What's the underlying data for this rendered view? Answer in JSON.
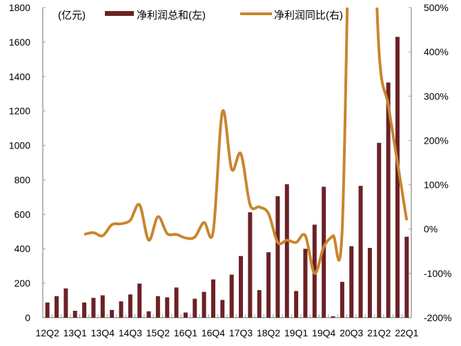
{
  "chart_data": {
    "type": "bar+line",
    "title": "",
    "unit_label": "(亿元)",
    "legend": [
      {
        "name": "净利润总和(左)",
        "type": "bar",
        "color": "#6b2226"
      },
      {
        "name": "净利润同比(右)",
        "type": "line",
        "color": "#c8862e"
      }
    ],
    "left_axis": {
      "min": 0,
      "max": 1800,
      "ticks": [
        0,
        200,
        400,
        600,
        800,
        1000,
        1200,
        1400,
        1600,
        1800
      ]
    },
    "right_axis": {
      "min": -200,
      "max": 500,
      "ticks": [
        "-200%",
        "-100%",
        "0%",
        "100%",
        "200%",
        "300%",
        "400%",
        "500%"
      ],
      "tick_values": [
        -200,
        -100,
        0,
        100,
        200,
        300,
        400,
        500
      ]
    },
    "x_tick_labels": [
      "12Q2",
      "13Q1",
      "13Q4",
      "14Q3",
      "15Q2",
      "16Q1",
      "16Q4",
      "17Q3",
      "18Q2",
      "19Q1",
      "19Q4",
      "20Q3",
      "21Q2",
      "22Q1"
    ],
    "categories": [
      "12Q2",
      "12Q3",
      "12Q4",
      "13Q1",
      "13Q2",
      "13Q3",
      "13Q4",
      "14Q1",
      "14Q2",
      "14Q3",
      "14Q4",
      "15Q1",
      "15Q2",
      "15Q3",
      "15Q4",
      "16Q1",
      "16Q2",
      "16Q3",
      "16Q4",
      "17Q1",
      "17Q2",
      "17Q3",
      "17Q4",
      "18Q1",
      "18Q2",
      "18Q3",
      "18Q4",
      "19Q1",
      "19Q2",
      "19Q3",
      "19Q4",
      "20Q1",
      "20Q2",
      "20Q3",
      "20Q4",
      "21Q1",
      "21Q2",
      "21Q3",
      "21Q4",
      "22Q1"
    ],
    "series": [
      {
        "name": "净利润总和(左)",
        "axis": "left",
        "values": [
          88,
          125,
          170,
          40,
          88,
          115,
          130,
          45,
          95,
          135,
          198,
          37,
          125,
          118,
          175,
          30,
          110,
          150,
          222,
          103,
          250,
          358,
          612,
          160,
          380,
          705,
          775,
          155,
          400,
          540,
          760,
          8,
          208,
          415,
          765,
          405,
          1015,
          1365,
          1630,
          470
        ]
      },
      {
        "name": "净利润同比(右)",
        "axis": "right",
        "values": [
          null,
          null,
          null,
          null,
          -12,
          -8,
          -15,
          10,
          12,
          20,
          55,
          -25,
          28,
          -10,
          -12,
          -20,
          -18,
          15,
          -5,
          265,
          135,
          170,
          55,
          50,
          35,
          -30,
          -25,
          -30,
          -15,
          -100,
          -40,
          -15,
          0,
          null,
          null,
          null,
          400,
          280,
          150,
          20
        ],
        "note": "Line exceeds 500% (off-chart) around 20Q4–21Q1"
      }
    ],
    "grid": false,
    "legend_position": "top"
  }
}
